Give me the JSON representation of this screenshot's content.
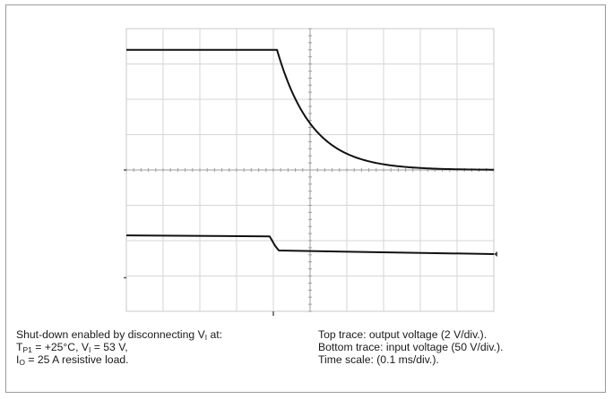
{
  "chart_data": {
    "type": "line",
    "title": "",
    "xlabel": "",
    "ylabel": "",
    "grid": true,
    "divisions": {
      "x": 10,
      "y": 8
    },
    "time_scale_ms_per_div": 0.1,
    "series": [
      {
        "role": "top trace",
        "volts_per_div": 2,
        "x_div": [
          0,
          4.1,
          4.25,
          4.5,
          5.0,
          5.5,
          6.0,
          7.0,
          8.0,
          9.0,
          10.0
        ],
        "y_div": [
          7.4,
          7.4,
          7.2,
          6.4,
          5.3,
          4.65,
          4.35,
          4.12,
          4.05,
          4.02,
          4.0
        ]
      },
      {
        "role": "bottom trace",
        "volts_per_div": 50,
        "x_div": [
          0,
          3.9,
          4.05,
          4.15,
          10.0
        ],
        "y_div": [
          2.15,
          2.12,
          1.85,
          1.72,
          1.62
        ]
      }
    ]
  },
  "caption": {
    "left": [
      [
        "Shut-down enabled by disconnecting V",
        "I",
        " at:"
      ],
      [
        "T",
        "P1",
        " = +25°C, V",
        "I",
        " = 53 V,"
      ],
      [
        "I",
        "O",
        " = 25 A resistive load."
      ]
    ],
    "right": [
      "Top trace: output voltage (2 V/div.).",
      "Bottom trace: input voltage (50 V/div.).",
      "Time scale: (0.1 ms/div.)."
    ]
  }
}
